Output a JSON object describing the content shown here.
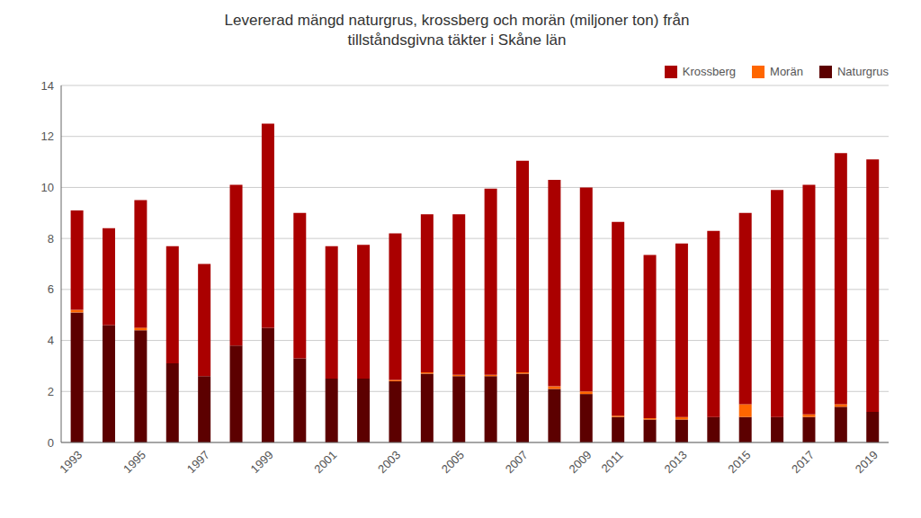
{
  "chart_data": {
    "type": "bar",
    "title": "Levererad mängd naturgrus, krossberg och morän (miljoner ton) från\ntillståndsgivna täkter i Skåne län",
    "categories": [
      "1993",
      null,
      "1995",
      null,
      "1997",
      null,
      "1999",
      null,
      "2001",
      null,
      "2003",
      null,
      "2005",
      null,
      "2007",
      null,
      "2009",
      "2011",
      null,
      "2013",
      null,
      "2015",
      null,
      "2017",
      null,
      "2019"
    ],
    "series": [
      {
        "name": "Naturgrus",
        "color": "#5c0000",
        "values": [
          5.1,
          4.6,
          4.4,
          3.1,
          2.6,
          3.8,
          4.5,
          3.3,
          2.5,
          2.5,
          2.4,
          2.7,
          2.6,
          2.6,
          2.7,
          2.1,
          1.9,
          1.0,
          0.9,
          0.9,
          1.0,
          1.0,
          1.0,
          1.0,
          1.4,
          1.2
        ]
      },
      {
        "name": "Morän",
        "color": "#ff6600",
        "values": [
          0.1,
          0.0,
          0.1,
          0.0,
          0.0,
          0.0,
          0.0,
          0.0,
          0.0,
          0.0,
          0.05,
          0.05,
          0.05,
          0.05,
          0.05,
          0.1,
          0.1,
          0.05,
          0.05,
          0.1,
          0.0,
          0.5,
          0.0,
          0.1,
          0.1,
          0.0
        ]
      },
      {
        "name": "Krossberg",
        "color": "#aa0000",
        "values": [
          3.9,
          3.8,
          5.0,
          4.6,
          4.4,
          6.3,
          8.0,
          5.7,
          5.2,
          5.25,
          5.75,
          6.2,
          6.3,
          7.3,
          8.3,
          8.1,
          8.0,
          7.6,
          6.4,
          6.8,
          7.3,
          7.5,
          8.9,
          9.0,
          9.85,
          9.9
        ]
      }
    ],
    "stacked": true,
    "ylim": [
      0,
      14
    ],
    "yticks": [
      0,
      2,
      4,
      6,
      8,
      10,
      12,
      14
    ],
    "grid": true,
    "legend": "upper right"
  }
}
